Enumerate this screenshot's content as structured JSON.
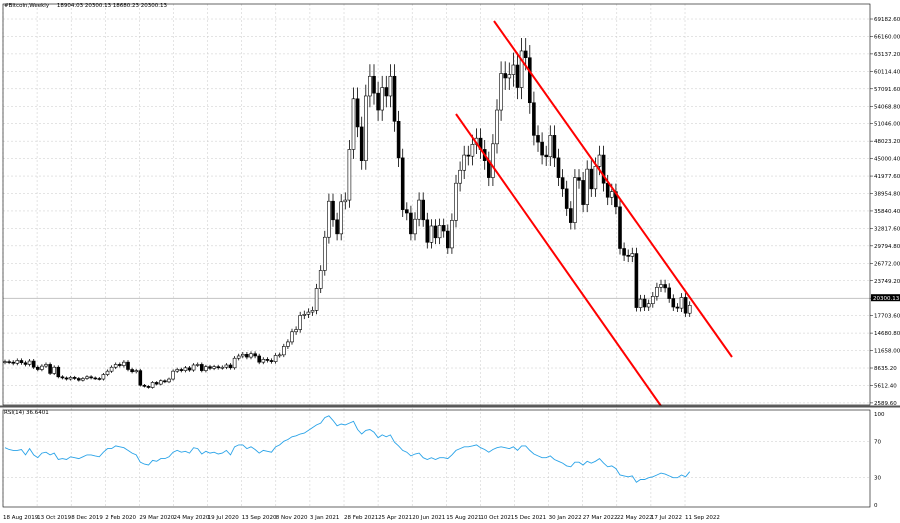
{
  "header": {
    "symbol": "#Bitcoin,Weekly",
    "ohlc": "18904.03 20300.13 18680.23 20300.13"
  },
  "rsi_header": "RSI(14) 36.6401",
  "current_price_label": "20300.13",
  "colors": {
    "background": "#ffffff",
    "grid": "#c8c8c8",
    "candle": "#000000",
    "channel": "#ff0000",
    "rsi_line": "#2aa3e8",
    "current_price_box": "#000000"
  },
  "chart_data": [
    {
      "type": "candlestick",
      "title": "",
      "price_axis_labels": [
        "69182.60",
        "66160.00",
        "63137.20",
        "60114.40",
        "57091.60",
        "54068.80",
        "51046.00",
        "48023.20",
        "45000.40",
        "41977.60",
        "38954.80",
        "35840.40",
        "32817.60",
        "29794.80",
        "26772.00",
        "23749.20",
        "20300.13",
        "17703.60",
        "14680.80",
        "11658.00",
        "8635.20",
        "5612.40",
        "2589.60"
      ],
      "date_axis_labels": [
        "18 Aug 2019",
        "13 Oct 2019",
        "8 Dec 2019",
        "2 Feb 2020",
        "29 Mar 2020",
        "24 May 2020",
        "19 Jul 2020",
        "13 Sep 2020",
        "8 Nov 2020",
        "3 Jan 2021",
        "28 Feb 2021",
        "25 Apr 2021",
        "20 Jun 2021",
        "15 Aug 2021",
        "10 Oct 2021",
        "5 Dec 2021",
        "30 Jan 2022",
        "27 Mar 2022",
        "22 May 2022",
        "17 Jul 2022",
        "11 Sep 2022"
      ],
      "ylim": [
        2589.6,
        71000
      ],
      "approx_closes": [
        10300,
        10200,
        10000,
        10500,
        10100,
        9800,
        10400,
        9300,
        8900,
        9500,
        9800,
        8200,
        9300,
        7600,
        7400,
        7200,
        7500,
        7300,
        7000,
        7300,
        7600,
        7400,
        7300,
        7200,
        8000,
        8600,
        9300,
        9800,
        9600,
        10200,
        8900,
        8500,
        8700,
        6100,
        5900,
        5700,
        6600,
        6300,
        6900,
        6700,
        7200,
        8600,
        8900,
        8700,
        9200,
        8800,
        9700,
        9800,
        8700,
        9400,
        9100,
        9400,
        9200,
        9300,
        9700,
        9200,
        10900,
        11300,
        11600,
        11100,
        11700,
        11300,
        10200,
        10700,
        10500,
        10300,
        11400,
        11500,
        13000,
        13800,
        15600,
        16000,
        18500,
        18700,
        19100,
        19400,
        23300,
        26500,
        32400,
        38800,
        35500,
        33000,
        38700,
        39000,
        48000,
        57000,
        52000,
        46000,
        57500,
        61000,
        58000,
        55000,
        59000,
        57500,
        61000,
        53000,
        46500,
        37300,
        36700,
        33000,
        35600,
        39000,
        35500,
        31500,
        34400,
        32300,
        34500,
        33500,
        30500,
        35400,
        42000,
        44300,
        47000,
        46800,
        48900,
        50000,
        48000,
        46000,
        43000,
        49000,
        55000,
        61500,
        60700,
        61300,
        63000,
        59000,
        65500,
        64300,
        56300,
        50500,
        49300,
        47000,
        46700,
        50500,
        46500,
        43000,
        41000,
        37500,
        35000,
        43000,
        42500,
        38200,
        44500,
        41000,
        45000,
        47000,
        42000,
        39500,
        40500,
        37800,
        30400,
        29200,
        29000,
        29500,
        19900,
        21400,
        20000,
        20600,
        21900,
        23500,
        24000,
        23400,
        21500,
        20000,
        19800,
        21700,
        18900,
        20300
      ],
      "rsi_axis_labels": [
        "100",
        "70",
        "30",
        "0"
      ],
      "rsi_range": [
        0,
        100
      ],
      "approx_rsi": [
        63,
        61,
        60,
        60,
        61,
        55,
        62,
        55,
        52,
        57,
        58,
        55,
        57,
        50,
        51,
        50,
        53,
        52,
        51,
        53,
        55,
        55,
        54,
        53,
        58,
        62,
        62,
        65,
        64,
        63,
        60,
        57,
        55,
        47,
        45,
        44,
        49,
        48,
        51,
        51,
        53,
        58,
        60,
        58,
        59,
        57,
        63,
        62,
        56,
        59,
        57,
        58,
        56,
        57,
        60,
        55,
        64,
        66,
        66,
        62,
        64,
        61,
        57,
        60,
        59,
        58,
        64,
        66,
        70,
        72,
        75,
        76,
        78,
        79,
        82,
        85,
        88,
        90,
        96,
        98,
        93,
        87,
        89,
        88,
        90,
        92,
        83,
        78,
        82,
        83,
        80,
        74,
        77,
        75,
        77,
        69,
        65,
        60,
        58,
        54,
        56,
        57,
        52,
        50,
        52,
        50,
        52,
        52,
        51,
        55,
        60,
        62,
        64,
        64,
        65,
        66,
        63,
        61,
        58,
        61,
        63,
        64,
        63,
        62,
        64,
        60,
        65,
        65,
        60,
        56,
        54,
        52,
        52,
        54,
        50,
        48,
        46,
        43,
        42,
        47,
        47,
        44,
        48,
        46,
        48,
        51,
        46,
        42,
        43,
        40,
        33,
        32,
        31,
        32,
        25,
        28,
        28,
        30,
        31,
        33,
        35,
        34,
        32,
        30,
        30,
        33,
        31,
        36.6
      ],
      "channel_lines": [
        {
          "name": "upper",
          "points": [
            [
              "10 Oct 2021",
              69000
            ],
            [
              "2 Oct 2022",
              10800
            ]
          ]
        },
        {
          "name": "lower",
          "points": [
            [
              "15 Aug 2021",
              52000
            ],
            [
              "22 Aug 2022",
              2589.6
            ]
          ]
        }
      ],
      "grid": true
    }
  ]
}
